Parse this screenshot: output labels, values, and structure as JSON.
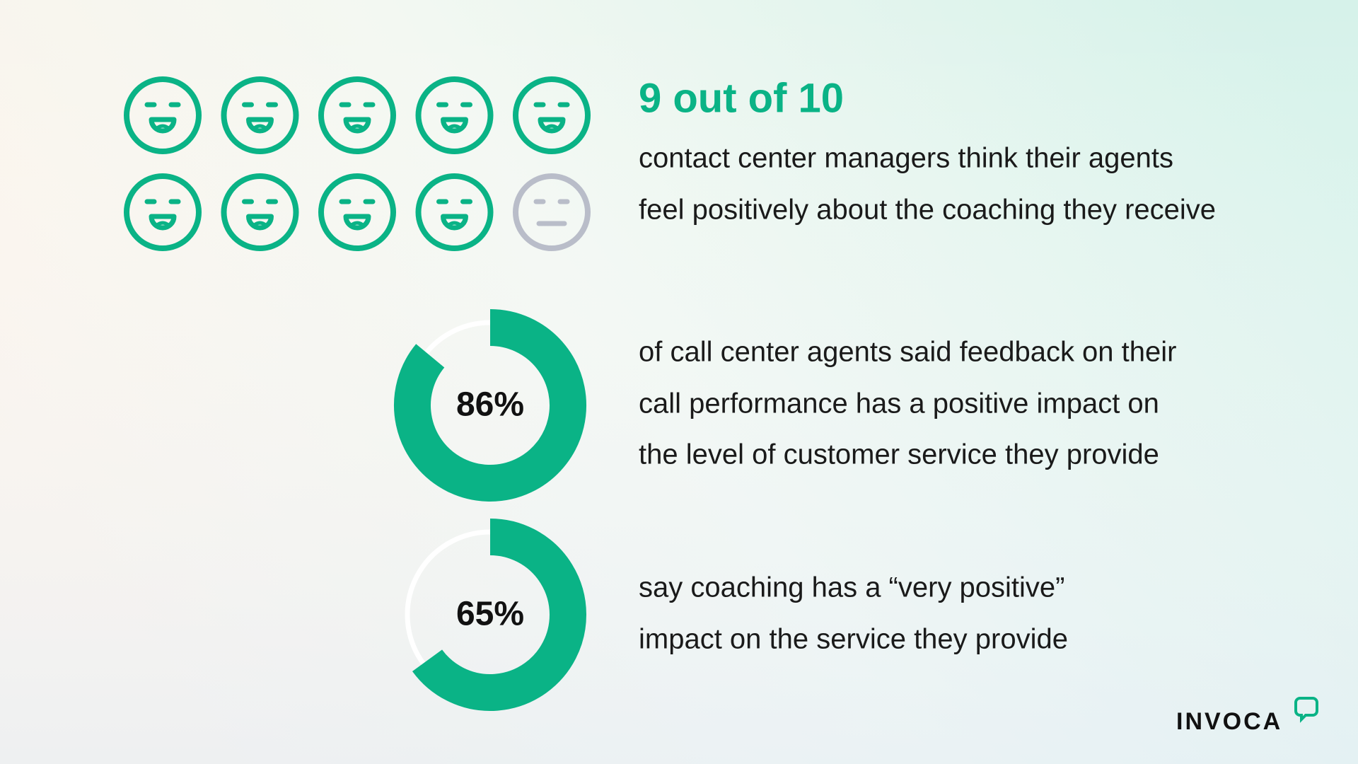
{
  "headline": "9 out of 10",
  "icons": {
    "positive": 9,
    "total": 10
  },
  "statement_lines": [
    "contact center managers think their agents",
    "feel positively about the coaching they receive"
  ],
  "donuts": [
    {
      "value": 86,
      "label": "86%",
      "lines": [
        "of call center agents said feedback on their",
        "call performance has a positive impact on",
        "the level of customer service they provide"
      ]
    },
    {
      "value": 65,
      "label": "65%",
      "lines": [
        "say coaching has a “very positive”",
        "impact on the service they provide"
      ]
    }
  ],
  "logo": "INVOCA"
}
